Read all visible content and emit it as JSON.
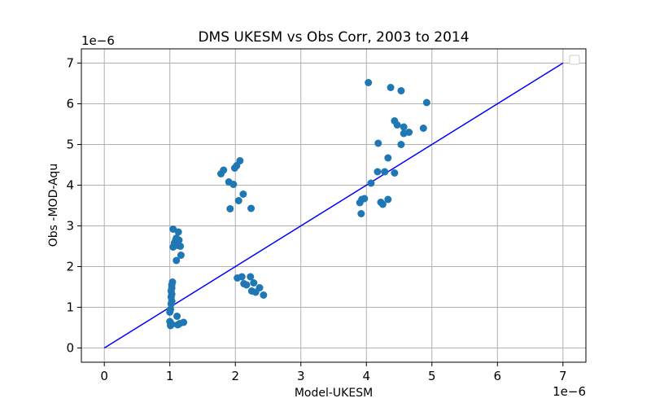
{
  "chart_data": {
    "type": "scatter",
    "title": "DMS UKESM vs Obs Corr, 2003 to 2014",
    "xlabel": "Model-UKESM",
    "ylabel": "Obs -MOD-Aqu",
    "x_offset_label": "1e−6",
    "y_offset_label": "1e−6",
    "xlim": [
      -0.35,
      7.35
    ],
    "ylim": [
      -0.35,
      7.35
    ],
    "x_ticks": [
      0,
      1,
      2,
      3,
      4,
      5,
      6,
      7
    ],
    "y_ticks": [
      0,
      1,
      2,
      3,
      4,
      5,
      6,
      7
    ],
    "x_tick_labels": [
      "0",
      "1",
      "2",
      "3",
      "4",
      "5",
      "6",
      "7"
    ],
    "y_tick_labels": [
      "0",
      "1",
      "2",
      "3",
      "4",
      "5",
      "6",
      "7"
    ],
    "scale_note": "values in units of 1e-6",
    "grid": true,
    "legend": "top-right, empty",
    "colors": {
      "points": "#1f77b4",
      "line": "#0000ff",
      "grid": "#b0b0b0"
    },
    "reference_line": {
      "x": [
        0,
        7
      ],
      "y": [
        0,
        7
      ]
    },
    "points": [
      {
        "x": 1.01,
        "y": 0.55
      },
      {
        "x": 1.02,
        "y": 0.6
      },
      {
        "x": 1.0,
        "y": 0.65
      },
      {
        "x": 1.03,
        "y": 0.58
      },
      {
        "x": 1.12,
        "y": 0.57
      },
      {
        "x": 1.15,
        "y": 0.6
      },
      {
        "x": 1.21,
        "y": 0.63
      },
      {
        "x": 1.11,
        "y": 0.78
      },
      {
        "x": 1.0,
        "y": 0.88
      },
      {
        "x": 1.01,
        "y": 0.95
      },
      {
        "x": 1.02,
        "y": 1.08
      },
      {
        "x": 1.03,
        "y": 1.15
      },
      {
        "x": 1.02,
        "y": 1.25
      },
      {
        "x": 1.03,
        "y": 1.32
      },
      {
        "x": 1.02,
        "y": 1.4
      },
      {
        "x": 1.03,
        "y": 1.47
      },
      {
        "x": 1.03,
        "y": 1.55
      },
      {
        "x": 1.04,
        "y": 1.62
      },
      {
        "x": 1.05,
        "y": 2.48
      },
      {
        "x": 1.07,
        "y": 2.58
      },
      {
        "x": 1.09,
        "y": 2.65
      },
      {
        "x": 1.1,
        "y": 2.7
      },
      {
        "x": 1.05,
        "y": 2.92
      },
      {
        "x": 1.13,
        "y": 2.85
      },
      {
        "x": 1.14,
        "y": 2.65
      },
      {
        "x": 1.16,
        "y": 2.5
      },
      {
        "x": 1.1,
        "y": 2.15
      },
      {
        "x": 1.17,
        "y": 2.28
      },
      {
        "x": 1.12,
        "y": 2.52
      },
      {
        "x": 1.78,
        "y": 4.28
      },
      {
        "x": 1.82,
        "y": 4.37
      },
      {
        "x": 1.9,
        "y": 4.08
      },
      {
        "x": 1.97,
        "y": 4.02
      },
      {
        "x": 2.02,
        "y": 4.48
      },
      {
        "x": 1.99,
        "y": 4.42
      },
      {
        "x": 2.07,
        "y": 4.6
      },
      {
        "x": 2.05,
        "y": 3.62
      },
      {
        "x": 2.12,
        "y": 3.78
      },
      {
        "x": 2.24,
        "y": 3.43
      },
      {
        "x": 1.92,
        "y": 3.42
      },
      {
        "x": 2.03,
        "y": 1.72
      },
      {
        "x": 2.1,
        "y": 1.75
      },
      {
        "x": 2.13,
        "y": 1.58
      },
      {
        "x": 2.17,
        "y": 1.55
      },
      {
        "x": 2.23,
        "y": 1.75
      },
      {
        "x": 2.28,
        "y": 1.6
      },
      {
        "x": 2.25,
        "y": 1.4
      },
      {
        "x": 2.31,
        "y": 1.37
      },
      {
        "x": 2.37,
        "y": 1.48
      },
      {
        "x": 2.43,
        "y": 1.3
      },
      {
        "x": 4.03,
        "y": 6.52
      },
      {
        "x": 4.37,
        "y": 6.4
      },
      {
        "x": 4.53,
        "y": 6.32
      },
      {
        "x": 4.92,
        "y": 6.03
      },
      {
        "x": 4.43,
        "y": 5.58
      },
      {
        "x": 4.47,
        "y": 5.48
      },
      {
        "x": 4.57,
        "y": 5.43
      },
      {
        "x": 4.57,
        "y": 5.27
      },
      {
        "x": 4.65,
        "y": 5.3
      },
      {
        "x": 4.87,
        "y": 5.4
      },
      {
        "x": 4.18,
        "y": 5.03
      },
      {
        "x": 4.53,
        "y": 5.0
      },
      {
        "x": 4.33,
        "y": 4.67
      },
      {
        "x": 4.17,
        "y": 4.33
      },
      {
        "x": 4.28,
        "y": 4.33
      },
      {
        "x": 4.43,
        "y": 4.3
      },
      {
        "x": 4.07,
        "y": 4.05
      },
      {
        "x": 3.93,
        "y": 3.65
      },
      {
        "x": 3.97,
        "y": 3.67
      },
      {
        "x": 3.9,
        "y": 3.57
      },
      {
        "x": 4.22,
        "y": 3.58
      },
      {
        "x": 4.25,
        "y": 3.53
      },
      {
        "x": 4.33,
        "y": 3.65
      },
      {
        "x": 3.92,
        "y": 3.3
      }
    ]
  }
}
